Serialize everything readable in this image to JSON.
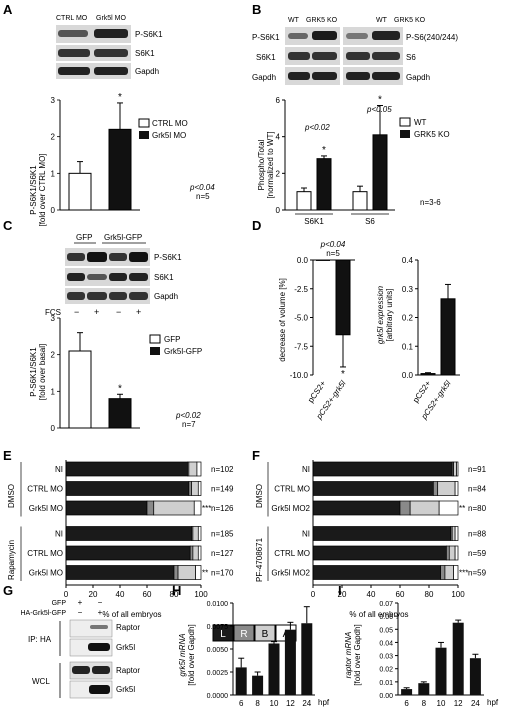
{
  "panels": {
    "A": {
      "letter": "A",
      "blot_header": [
        "CTRL MO",
        "Grk5l MO"
      ],
      "blot_labels": [
        "P-S6K1",
        "S6K1",
        "Gapdh"
      ],
      "ylabel": [
        "P-S6K1/S6K1",
        "[fold over CTRL MO]"
      ],
      "legend": [
        "CTRL MO",
        "Grk5l MO"
      ],
      "stats": [
        "p<0.04",
        "n=5"
      ],
      "star": "*"
    },
    "B": {
      "letter": "B",
      "blot_header_left": [
        "WT",
        "GRK5 KO"
      ],
      "blot_header_right": [
        "WT",
        "GRK5 KO"
      ],
      "blot_labels_left": [
        "P-S6K1",
        "S6K1",
        "Gapdh"
      ],
      "blot_labels_right": [
        "P-S6(240/244)",
        "S6",
        "Gapdh"
      ],
      "ylabel": [
        "Phospho/Total",
        "[normalized to WT]"
      ],
      "legend": [
        "WT",
        "GRK5 KO"
      ],
      "pvals": [
        "p<0.02",
        "p<0.05"
      ],
      "groups": [
        "S6K1",
        "S6"
      ],
      "n": "n=3-6",
      "star": "*"
    },
    "C": {
      "letter": "C",
      "blot_header": [
        "GFP",
        "Grk5l-GFP"
      ],
      "blot_labels": [
        "P-S6K1",
        "S6K1",
        "Gapdh"
      ],
      "fcs_label": "FCS",
      "fcs_signs": [
        "−",
        "+",
        "−",
        "+"
      ],
      "ylabel": [
        "P-S6K1/S6K1",
        "[fold over basal]"
      ],
      "legend": [
        "GFP",
        "Grk5l-GFP"
      ],
      "stats": [
        "p<0.02",
        "n=7"
      ],
      "star": "*"
    },
    "D": {
      "letter": "D",
      "stats": [
        "p<0.04",
        "n=5"
      ],
      "left_ylabel": "decrease of volume [%]",
      "right_ylabel": [
        "grk5l expression",
        "[arbitrary units]"
      ],
      "categories": [
        "pCS2+",
        "pCS2+-grk5l"
      ],
      "star": "*"
    },
    "E": {
      "letter": "E",
      "groups": [
        "DMSO",
        "Rapamycin"
      ],
      "rows": [
        "NI",
        "CTRL MO",
        "Grk5l MO",
        "NI",
        "CTRL MO",
        "Grk5l MO"
      ],
      "n_labels": [
        "n=102",
        "n=149",
        "n=126",
        "n=185",
        "n=127",
        "n=170"
      ],
      "sig": [
        "",
        "",
        "***",
        "",
        "",
        "**"
      ],
      "xlabel": "% of all embryos"
    },
    "F": {
      "letter": "F",
      "groups": [
        "DMSO",
        "PF-4708671"
      ],
      "rows": [
        "NI",
        "CTRL MO",
        "Grk5l MO2",
        "NI",
        "CTRL MO",
        "Grk5l MO2"
      ],
      "n_labels": [
        "n=91",
        "n=84",
        "n=80",
        "n=88",
        "n=59",
        "n=59"
      ],
      "sig": [
        "",
        "",
        "**",
        "",
        "",
        "***"
      ],
      "xlabel": "% of all embryos"
    },
    "G": {
      "letter": "G",
      "row_labels": [
        "GFP",
        "HA-Grk5l-GFP"
      ],
      "signs": [
        [
          "+",
          "−"
        ],
        [
          "−",
          "+"
        ]
      ],
      "ip_label": "IP: HA",
      "wcl_label": "WCL",
      "blot_labels": [
        "Raptor",
        "Grk5l",
        "Raptor",
        "Grk5l"
      ]
    },
    "H": {
      "letter": "H",
      "ylabel": [
        "grk5l mRNA",
        "[fold over Gapdh]"
      ],
      "unit": "hpf"
    },
    "I": {
      "letter": "I",
      "ylabel": [
        "raptor mRNA",
        "[fold over Gapdh]"
      ],
      "unit": "hpf"
    }
  },
  "legend_keys": [
    "L",
    "R",
    "B",
    "A"
  ],
  "colors": {
    "L": "#1a1a1a",
    "R": "#8a8a8a",
    "B": "#cfcfcf",
    "A": "#ffffff"
  },
  "chart_data": [
    {
      "panel": "A",
      "type": "bar",
      "categories": [
        "CTRL MO",
        "Grk5l MO"
      ],
      "values": [
        1.0,
        2.2
      ],
      "errors": [
        0.32,
        0.72
      ],
      "ylim": [
        0,
        3
      ],
      "yticks": [
        0,
        1,
        2,
        3
      ]
    },
    {
      "panel": "B",
      "type": "bar",
      "categories": [
        "S6K1",
        "S6"
      ],
      "series": [
        {
          "name": "WT",
          "values": [
            1.0,
            1.0
          ],
          "errors": [
            0.2,
            0.3
          ]
        },
        {
          "name": "GRK5 KO",
          "values": [
            2.8,
            4.1
          ],
          "errors": [
            0.15,
            1.6
          ]
        }
      ],
      "ylim": [
        0,
        6
      ],
      "yticks": [
        0,
        2,
        4,
        6
      ]
    },
    {
      "panel": "C",
      "type": "bar",
      "categories": [
        "GFP",
        "Grk5l-GFP"
      ],
      "values": [
        2.1,
        0.8
      ],
      "errors": [
        0.5,
        0.12
      ],
      "ylim": [
        0,
        3
      ],
      "yticks": [
        0,
        1,
        2,
        3
      ]
    },
    {
      "panel": "D-left",
      "type": "bar",
      "categories": [
        "pCS2+",
        "pCS2+-grk5l"
      ],
      "values": [
        0,
        -6.5
      ],
      "errors": [
        0.1,
        2.8
      ],
      "ylim": [
        -10.0,
        0.0
      ],
      "yticks": [
        0.0,
        -2.5,
        -5.0,
        -7.5,
        -10.0
      ]
    },
    {
      "panel": "D-right",
      "type": "bar",
      "categories": [
        "pCS2+",
        "pCS2+-grk5l"
      ],
      "values": [
        0.005,
        0.265
      ],
      "errors": [
        0.003,
        0.05
      ],
      "ylim": [
        0,
        0.4
      ],
      "yticks": [
        0.0,
        0.1,
        0.2,
        0.3,
        0.4
      ]
    },
    {
      "panel": "E",
      "type": "bar",
      "stacked": true,
      "categories": [
        "NI",
        "CTRL MO",
        "Grk5l MO",
        "NI",
        "CTRL MO",
        "Grk5l MO"
      ],
      "series": [
        {
          "name": "L",
          "values": [
            90,
            91,
            60,
            93,
            92,
            80
          ]
        },
        {
          "name": "R",
          "values": [
            1,
            2,
            5,
            1,
            2,
            3
          ]
        },
        {
          "name": "B",
          "values": [
            6,
            5,
            30,
            4,
            4,
            13
          ]
        },
        {
          "name": "A",
          "values": [
            3,
            2,
            5,
            2,
            2,
            4
          ]
        }
      ],
      "xlim": [
        0,
        100
      ],
      "xticks": [
        0,
        20,
        40,
        60,
        80,
        100
      ]
    },
    {
      "panel": "F",
      "type": "bar",
      "stacked": true,
      "categories": [
        "NI",
        "CTRL MO",
        "Grk5l MO2",
        "NI",
        "CTRL MO",
        "Grk5l MO2"
      ],
      "series": [
        {
          "name": "L",
          "values": [
            96,
            83,
            60,
            95,
            92,
            88
          ]
        },
        {
          "name": "R",
          "values": [
            1,
            3,
            7,
            1,
            2,
            3
          ]
        },
        {
          "name": "B",
          "values": [
            2,
            12,
            20,
            2,
            4,
            6
          ]
        },
        {
          "name": "A",
          "values": [
            1,
            2,
            13,
            2,
            2,
            3
          ]
        }
      ],
      "xlim": [
        0,
        100
      ],
      "xticks": [
        0,
        20,
        40,
        60,
        80,
        100
      ]
    },
    {
      "panel": "H",
      "type": "bar",
      "categories": [
        "6",
        "8",
        "10",
        "12",
        "24"
      ],
      "values": [
        0.003,
        0.0021,
        0.0056,
        0.0071,
        0.0078
      ],
      "errors": [
        0.001,
        0.0004,
        0.0002,
        0.0008,
        0.0018
      ],
      "ylim": [
        0,
        0.01
      ],
      "yticks": [
        0.0,
        0.0025,
        0.005,
        0.0075,
        0.01
      ],
      "yticklabels": [
        "0.0000",
        "0.0025",
        "0.0050",
        "0.0075",
        "0.0100"
      ]
    },
    {
      "panel": "I",
      "type": "bar",
      "categories": [
        "6",
        "8",
        "10",
        "12",
        "24"
      ],
      "values": [
        0.0045,
        0.009,
        0.036,
        0.055,
        0.028
      ],
      "errors": [
        0.001,
        0.001,
        0.004,
        0.002,
        0.003
      ],
      "ylim": [
        0,
        0.07
      ],
      "yticks": [
        0.0,
        0.01,
        0.02,
        0.03,
        0.04,
        0.05,
        0.06,
        0.07
      ],
      "yticklabels": [
        "0.00",
        "0.01",
        "0.02",
        "0.03",
        "0.04",
        "0.05",
        "0.06",
        "0.07"
      ]
    }
  ]
}
